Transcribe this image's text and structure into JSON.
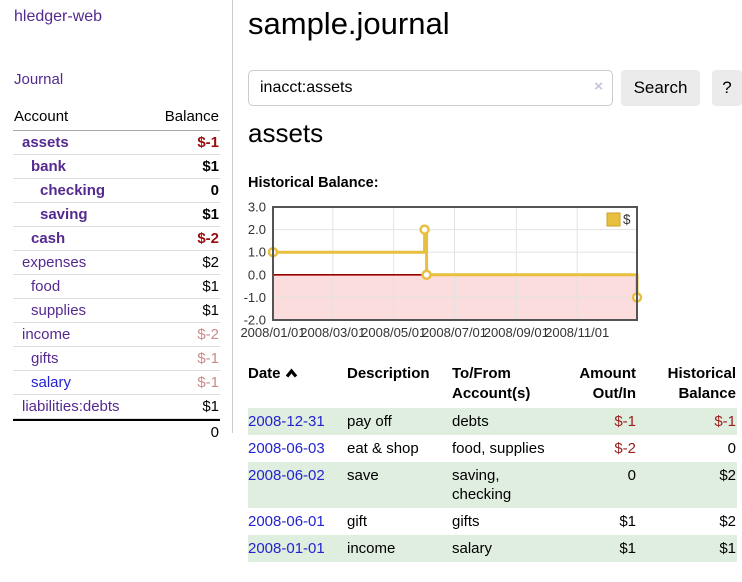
{
  "app": {
    "brand": "hledger-web"
  },
  "sidebar": {
    "journal_link": "Journal",
    "accounts": {
      "header": {
        "account": "Account",
        "balance": "Balance"
      },
      "rows": [
        {
          "name": "assets",
          "balance": "$-1"
        },
        {
          "name": "bank",
          "balance": "$1"
        },
        {
          "name": "checking",
          "balance": "0"
        },
        {
          "name": "saving",
          "balance": "$1"
        },
        {
          "name": "cash",
          "balance": "$-2"
        },
        {
          "name": "expenses",
          "balance": "$2"
        },
        {
          "name": "food",
          "balance": "$1"
        },
        {
          "name": "supplies",
          "balance": "$1"
        },
        {
          "name": "income",
          "balance": "$-2"
        },
        {
          "name": "gifts",
          "balance": "$-1"
        },
        {
          "name": "salary",
          "balance": "$-1"
        },
        {
          "name": "liabilities:debts",
          "balance": "$1"
        }
      ],
      "total": "0"
    }
  },
  "header": {
    "title": "sample.journal"
  },
  "search": {
    "value": "inacct:assets",
    "clear_icon": "×",
    "button": "Search",
    "help_button": "?"
  },
  "account_page": {
    "heading": "assets",
    "chart_label": "Historical Balance:"
  },
  "chart_data": {
    "type": "line",
    "title": "Historical Balance:",
    "step": true,
    "series": [
      {
        "name": "$",
        "color": "#e8bf3f",
        "points": [
          [
            "2008-01-01",
            1
          ],
          [
            "2008-06-01",
            2
          ],
          [
            "2008-06-03",
            0
          ],
          [
            "2008-12-31",
            -1
          ]
        ]
      }
    ],
    "xlim": [
      "2008-01-01",
      "2008-12-31"
    ],
    "ylim": [
      -2,
      3
    ],
    "x_ticks": [
      "2008/01/01",
      "2008/03/01",
      "2008/05/01",
      "2008/07/01",
      "2008/09/01",
      "2008/11/01"
    ],
    "y_ticks": [
      3.0,
      2.0,
      1.0,
      0.0,
      -1.0,
      -2.0
    ],
    "legend": {
      "label": "$",
      "position": "top-right"
    },
    "grid": true,
    "zero_line_color": "#990000",
    "negative_region_color": "#fcdddd",
    "border_color": "#545454",
    "grid_color": "#e3e3e3",
    "tick_label_color": "#333333"
  },
  "register": {
    "header": {
      "date": "Date",
      "description": "Description",
      "accounts": "To/From Account(s)",
      "amount": "Amount Out/In",
      "balance": "Historical Balance"
    },
    "rows": [
      {
        "date": "2008-12-31",
        "description": "pay off",
        "accounts": "debts",
        "amount": "$-1",
        "balance": "$-1"
      },
      {
        "date": "2008-06-03",
        "description": "eat & shop",
        "accounts": "food, supplies",
        "amount": "$-2",
        "balance": "0"
      },
      {
        "date": "2008-06-02",
        "description": "save",
        "accounts": "saving, checking",
        "amount": "0",
        "balance": "$2"
      },
      {
        "date": "2008-06-01",
        "description": "gift",
        "accounts": "gifts",
        "amount": "$1",
        "balance": "$2"
      },
      {
        "date": "2008-01-01",
        "description": "income",
        "accounts": "salary",
        "amount": "$1",
        "balance": "$1"
      }
    ]
  },
  "colors": {
    "link_purple": "#552a90",
    "link_blue": "#2323cf",
    "negative_strong": "#9c0d0d",
    "negative_pale": "#c98b8b",
    "row_green": "#dfeede",
    "chart_line_gold": "#e8bf3f"
  }
}
